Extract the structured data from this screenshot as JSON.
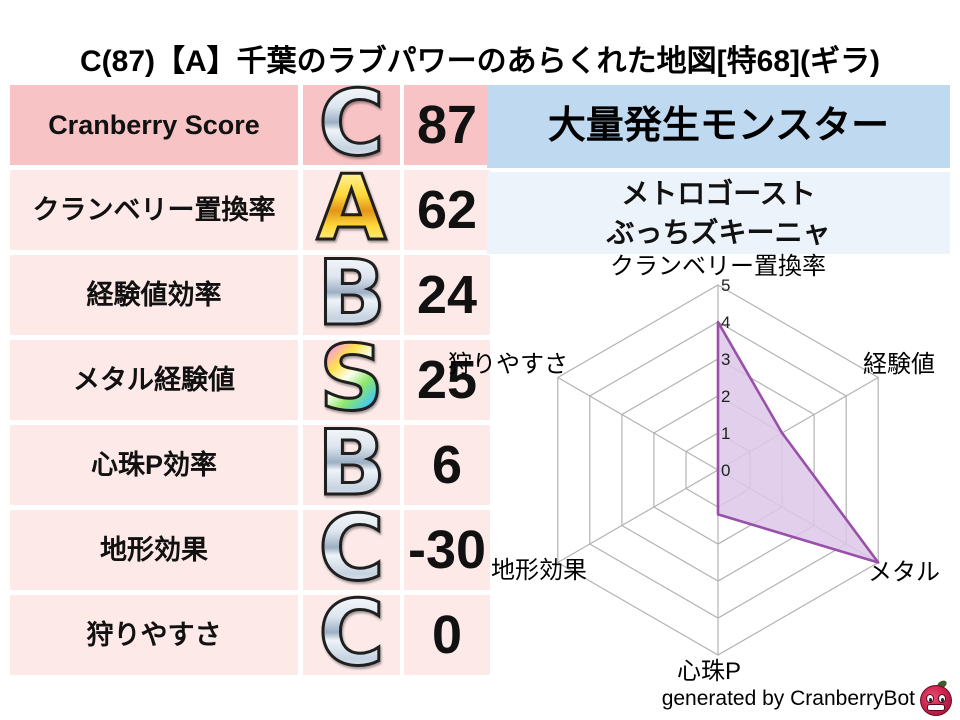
{
  "title": "C(87)【A】千葉のラブパワーのあらくれた地図[特68](ギラ)",
  "stats_table": {
    "rows": [
      {
        "label": "Cranberry Score",
        "grade": "C",
        "grade_style": "silver",
        "value": "87",
        "row_style": "dark"
      },
      {
        "label": "クランベリー置換率",
        "grade": "A",
        "grade_style": "gold",
        "value": "62",
        "row_style": "light"
      },
      {
        "label": "経験値効率",
        "grade": "B",
        "grade_style": "silver",
        "value": "24",
        "row_style": "light"
      },
      {
        "label": "メタル経験値",
        "grade": "S",
        "grade_style": "rainbow",
        "value": "25",
        "row_style": "light"
      },
      {
        "label": "心珠P効率",
        "grade": "B",
        "grade_style": "silver",
        "value": "6",
        "row_style": "light"
      },
      {
        "label": "地形効果",
        "grade": "C",
        "grade_style": "silver",
        "value": "-30",
        "row_style": "light"
      },
      {
        "label": "狩りやすさ",
        "grade": "C",
        "grade_style": "silver",
        "value": "0",
        "row_style": "light"
      }
    ]
  },
  "monster_panel": {
    "header": "大量発生モンスター",
    "monsters": [
      "メトロゴースト",
      "ぶっちズキーニャ"
    ]
  },
  "chart_data": {
    "type": "radar",
    "axes": [
      "クランベリー置換率",
      "経験値",
      "メタル",
      "心珠P",
      "地形効果",
      "狩りやすさ"
    ],
    "values": [
      4,
      2,
      5,
      1.2,
      0,
      0
    ],
    "ticks": [
      0,
      1,
      2,
      3,
      4,
      5
    ],
    "range": [
      0,
      5
    ],
    "grid_shape": "hexagon",
    "grid_color": "#b3b3b3",
    "line_color": "#9850a8",
    "fill_color": "#dcc7e8",
    "tick_label_axis": "クランベリー置換率"
  },
  "footer": {
    "credit": "generated by CranberryBot",
    "icon": "cranberrybot-icon"
  },
  "colors": {
    "row_highlight": "#f8c3c5",
    "row_light": "#fdeae8",
    "header_blue": "#bfd9f1",
    "panel_blue": "#edf3fb",
    "accent_purple": "#9850a8"
  }
}
